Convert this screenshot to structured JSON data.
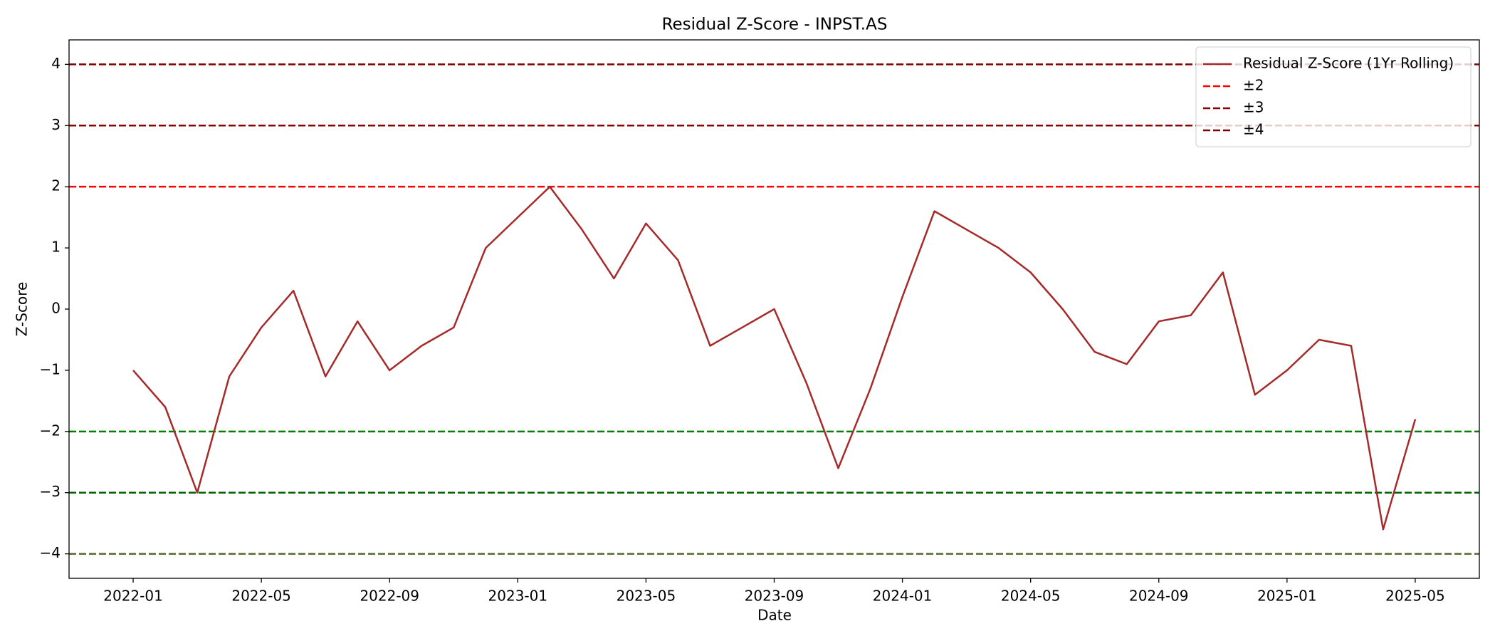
{
  "chart_data": {
    "type": "line",
    "title": "Residual Z-Score - INPST.AS",
    "xlabel": "Date",
    "ylabel": "Z-Score",
    "x": [
      "2022-01",
      "2022-02",
      "2022-03",
      "2022-04",
      "2022-05",
      "2022-06",
      "2022-07",
      "2022-08",
      "2022-09",
      "2022-10",
      "2022-11",
      "2022-12",
      "2023-01",
      "2023-02",
      "2023-03",
      "2023-04",
      "2023-05",
      "2023-06",
      "2023-07",
      "2023-08",
      "2023-09",
      "2023-10",
      "2023-11",
      "2023-12",
      "2024-01",
      "2024-02",
      "2024-03",
      "2024-04",
      "2024-05",
      "2024-06",
      "2024-07",
      "2024-08",
      "2024-09",
      "2024-10",
      "2024-11",
      "2024-12",
      "2025-01",
      "2025-02",
      "2025-03",
      "2025-04",
      "2025-05"
    ],
    "series": [
      {
        "name": "Residual Z-Score (1Yr Rolling)",
        "color": "#a52a2a",
        "values": [
          -1.0,
          -1.6,
          -3.0,
          -1.1,
          -0.3,
          0.3,
          -1.1,
          -0.2,
          -1.0,
          -0.6,
          -0.3,
          1.0,
          1.5,
          2.0,
          1.3,
          0.5,
          1.4,
          0.8,
          -0.6,
          -0.3,
          0.0,
          -1.2,
          -2.6,
          -1.3,
          0.2,
          1.6,
          1.3,
          1.0,
          0.6,
          0.0,
          -0.7,
          -0.9,
          -0.2,
          -0.1,
          0.6,
          -1.4,
          -1.0,
          -0.5,
          -0.6,
          -3.6,
          -1.8
        ]
      }
    ],
    "thresholds": [
      {
        "name": "±2",
        "values": [
          2,
          -2
        ],
        "colors": [
          "#ff0000",
          "#008000"
        ]
      },
      {
        "name": "±3",
        "values": [
          3,
          -3
        ],
        "colors": [
          "#8b0000",
          "#006400"
        ]
      },
      {
        "name": "±4",
        "values": [
          4,
          -4
        ],
        "colors": [
          "#800000",
          "#556b2f"
        ]
      }
    ],
    "xlim": [
      "2021-11",
      "2025-07"
    ],
    "xticks": [
      "2022-01",
      "2022-05",
      "2022-09",
      "2023-01",
      "2023-05",
      "2023-09",
      "2024-01",
      "2024-05",
      "2024-09",
      "2025-01",
      "2025-05"
    ],
    "ylim": [
      -4.4,
      4.4
    ],
    "yticks": [
      {
        "value": -4,
        "label": "−4"
      },
      {
        "value": -3,
        "label": "−3"
      },
      {
        "value": -2,
        "label": "−2"
      },
      {
        "value": -1,
        "label": "−1"
      },
      0,
      1,
      2,
      3,
      4
    ],
    "legend": "upper right"
  }
}
